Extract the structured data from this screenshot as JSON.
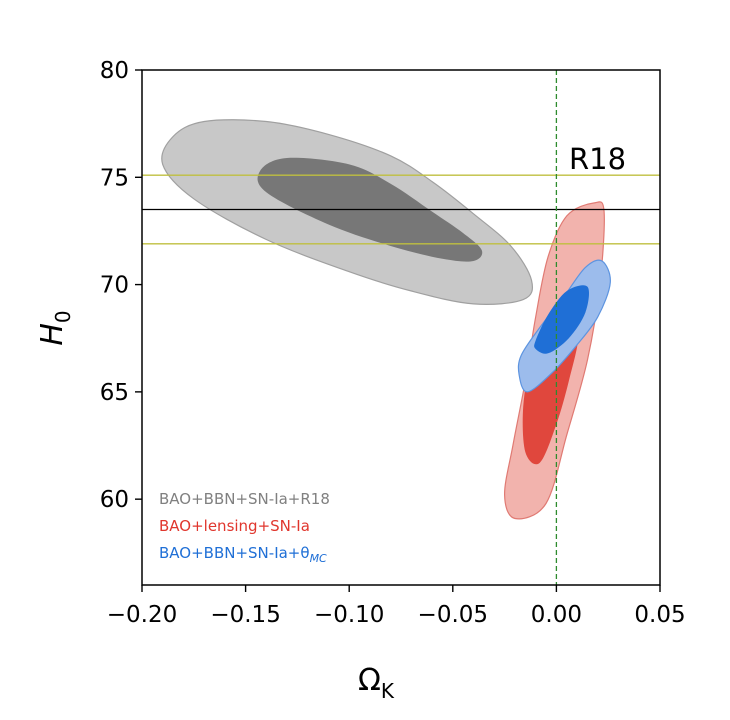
{
  "chart_data": {
    "type": "contour",
    "xlabel": "Ω",
    "xlabel_sub": "K",
    "ylabel": "H",
    "ylabel_sub": "0",
    "xlim": [
      -0.2,
      0.05
    ],
    "ylim": [
      56,
      80
    ],
    "x_ticks": [
      -0.2,
      -0.15,
      -0.1,
      -0.05,
      0.0,
      0.05
    ],
    "x_tick_labels": [
      "−0.20",
      "−0.15",
      "−0.10",
      "−0.05",
      "0.00",
      "0.05"
    ],
    "y_ticks": [
      60,
      65,
      70,
      75,
      80
    ],
    "y_tick_labels": [
      "60",
      "65",
      "70",
      "75",
      "80"
    ],
    "annotation": "R18",
    "reference_lines": {
      "h0_central": 73.5,
      "h0_band": [
        71.9,
        75.1
      ],
      "omega_k_flat": 0.0,
      "central_color": "#000000",
      "band_color": "#bfbf3f",
      "flat_color": "#2e8b2e"
    },
    "legend_position": "lower-left",
    "series": [
      {
        "name": "BAO+BBN+SN-Ia+R18",
        "color": "#808080",
        "contours": {
          "sigma2": [
            [
              -0.185,
              76.9
            ],
            [
              -0.17,
              77.6
            ],
            [
              -0.14,
              77.6
            ],
            [
              -0.11,
              77.0
            ],
            [
              -0.08,
              76.0
            ],
            [
              -0.06,
              74.8
            ],
            [
              -0.04,
              73.3
            ],
            [
              -0.022,
              71.8
            ],
            [
              -0.012,
              70.2
            ],
            [
              -0.016,
              69.3
            ],
            [
              -0.04,
              69.1
            ],
            [
              -0.07,
              69.7
            ],
            [
              -0.1,
              70.6
            ],
            [
              -0.14,
              72.1
            ],
            [
              -0.175,
              74.0
            ],
            [
              -0.19,
              75.6
            ]
          ],
          "sigma1": [
            [
              -0.143,
              75.3
            ],
            [
              -0.13,
              75.9
            ],
            [
              -0.1,
              75.6
            ],
            [
              -0.08,
              74.7
            ],
            [
              -0.06,
              73.4
            ],
            [
              -0.045,
              72.4
            ],
            [
              -0.036,
              71.6
            ],
            [
              -0.04,
              71.1
            ],
            [
              -0.055,
              71.2
            ],
            [
              -0.08,
              71.8
            ],
            [
              -0.11,
              72.8
            ],
            [
              -0.14,
              74.3
            ]
          ]
        }
      },
      {
        "name": "BAO+lensing+SN-Ia",
        "color": "#e0362d",
        "contours": {
          "sigma2": [
            [
              0.018,
              73.8
            ],
            [
              0.023,
              73.4
            ],
            [
              0.021,
              70.0
            ],
            [
              0.015,
              66.5
            ],
            [
              0.005,
              63.0
            ],
            [
              -0.005,
              59.8
            ],
            [
              -0.02,
              59.1
            ],
            [
              -0.025,
              60.2
            ],
            [
              -0.021,
              62.5
            ],
            [
              -0.015,
              65.5
            ],
            [
              -0.01,
              68.5
            ],
            [
              -0.004,
              71.3
            ],
            [
              0.005,
              73.2
            ]
          ],
          "sigma1": [
            [
              -0.002,
              67.6
            ],
            [
              0.003,
              69.0
            ],
            [
              0.009,
              69.8
            ],
            [
              0.011,
              67.8
            ],
            [
              0.006,
              65.5
            ],
            [
              0.0,
              63.5
            ],
            [
              -0.008,
              61.7
            ],
            [
              -0.015,
              62.2
            ],
            [
              -0.016,
              64.3
            ],
            [
              -0.012,
              66.3
            ]
          ]
        }
      },
      {
        "name": "BAO+BBN+SN-Ia+θ",
        "name_sub": "MC",
        "color": "#1f6fd6",
        "contours": {
          "sigma2": [
            [
              -0.017,
              66.7
            ],
            [
              -0.008,
              68.0
            ],
            [
              0.004,
              69.5
            ],
            [
              0.014,
              70.8
            ],
            [
              0.022,
              71.1
            ],
            [
              0.026,
              70.1
            ],
            [
              0.02,
              68.5
            ],
            [
              0.01,
              67.2
            ],
            [
              -0.002,
              65.9
            ],
            [
              -0.014,
              65.0
            ],
            [
              -0.018,
              65.8
            ]
          ],
          "sigma1": [
            [
              -0.01,
              67.4
            ],
            [
              -0.004,
              68.6
            ],
            [
              0.005,
              69.7
            ],
            [
              0.015,
              69.9
            ],
            [
              0.014,
              68.7
            ],
            [
              0.006,
              67.5
            ],
            [
              -0.004,
              66.8
            ],
            [
              -0.01,
              67.0
            ]
          ]
        }
      }
    ]
  }
}
